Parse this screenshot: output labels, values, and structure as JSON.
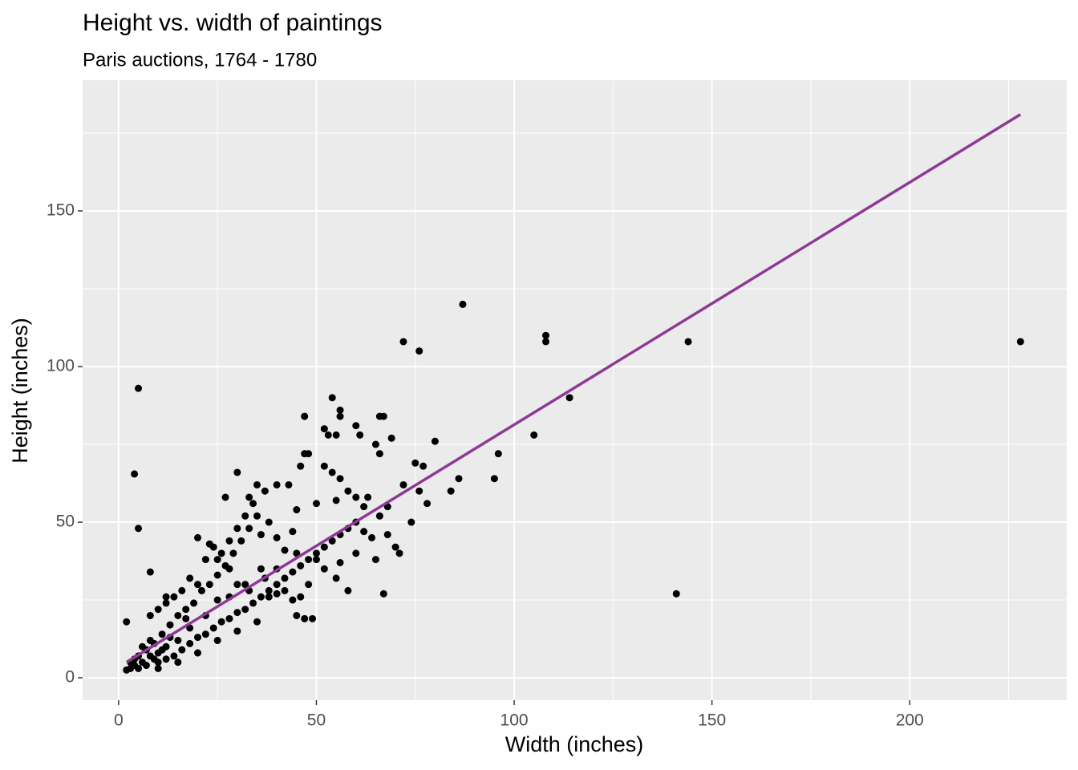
{
  "chart_data": {
    "type": "scatter",
    "title": "Height vs. width of paintings",
    "subtitle": "Paris auctions, 1764 - 1780",
    "x_label": "Width (inches)",
    "y_label": "Height (inches)",
    "x": [
      87,
      72,
      76,
      108,
      108,
      144,
      228,
      141,
      5,
      4,
      5,
      114,
      105,
      96,
      95,
      86,
      84,
      80,
      77,
      75,
      69,
      66,
      67,
      54,
      56,
      56,
      52,
      47,
      53,
      55,
      61,
      60,
      65,
      66,
      67,
      71,
      68,
      63,
      72,
      78,
      76,
      74,
      47,
      48,
      46,
      52,
      54,
      56,
      58,
      43,
      40,
      37,
      35,
      33,
      30,
      27,
      45,
      50,
      55,
      60,
      62,
      20,
      8,
      12,
      40,
      45,
      50,
      55,
      58,
      45,
      47,
      49,
      38,
      30,
      25,
      22,
      18,
      15,
      12,
      10,
      8,
      6,
      4,
      3,
      2,
      2,
      3,
      5,
      7,
      9,
      11,
      13,
      15,
      17,
      19,
      21,
      23,
      25,
      27,
      29,
      31,
      33,
      35,
      10,
      12,
      14,
      16,
      18,
      20,
      22,
      24,
      26,
      28,
      30,
      32,
      34,
      36,
      38,
      40,
      42,
      44,
      46,
      48,
      50,
      52,
      54,
      56,
      58,
      60,
      62,
      64,
      66,
      68,
      70,
      35,
      30,
      25,
      20,
      15,
      10,
      8,
      10,
      12,
      14,
      16,
      18,
      22,
      24,
      26,
      28,
      30,
      32,
      34,
      36,
      38,
      40,
      42,
      44,
      48,
      52,
      56,
      60,
      65,
      23,
      25,
      28,
      32,
      36,
      40,
      44,
      20,
      17,
      13,
      11,
      9,
      7,
      5,
      4,
      6,
      8,
      28,
      33,
      37,
      42,
      46
    ],
    "y": [
      120,
      108,
      105,
      110,
      108,
      108,
      108,
      27,
      93,
      65.5,
      48,
      90,
      78,
      72,
      64,
      64,
      60,
      76,
      68,
      69,
      77,
      84,
      84,
      90,
      86,
      84,
      80,
      84,
      78,
      78,
      78,
      81,
      75,
      72,
      27,
      40,
      46,
      58,
      62,
      56,
      60,
      50,
      72,
      72,
      68,
      68,
      66,
      64,
      60,
      62,
      62,
      60,
      62,
      58,
      66,
      58,
      54,
      56,
      57,
      58,
      55,
      45,
      34,
      26,
      35,
      40,
      38,
      32,
      28,
      20,
      19,
      19,
      26,
      30,
      25,
      20,
      16,
      12,
      10,
      8,
      7,
      5,
      4,
      3,
      2.5,
      18,
      5,
      7,
      9,
      11,
      14,
      17,
      20,
      22,
      24,
      28,
      30,
      33,
      36,
      40,
      44,
      48,
      52,
      5,
      6,
      7,
      9,
      11,
      13,
      14,
      16,
      18,
      19,
      21,
      22,
      24,
      26,
      28,
      30,
      32,
      34,
      36,
      38,
      40,
      42,
      44,
      46,
      48,
      50,
      47,
      45,
      52,
      55,
      42,
      18,
      15,
      12,
      8,
      5,
      3,
      20,
      22,
      24,
      26,
      28,
      32,
      38,
      42,
      40,
      44,
      48,
      52,
      56,
      46,
      50,
      45,
      41,
      47,
      30,
      35,
      37,
      40,
      38,
      43,
      38,
      35,
      30,
      35,
      27,
      25,
      30,
      19,
      13,
      9,
      6,
      4,
      3,
      6,
      10,
      12,
      26,
      28,
      32,
      28,
      26
    ],
    "point_color": "#000000",
    "trend_line": {
      "x": [
        2,
        228
      ],
      "y": [
        5,
        181
      ],
      "color": "#8e3a95"
    },
    "xlim": [
      -9.1,
      239.7
    ],
    "ylim": [
      -7.2,
      192
    ],
    "xticks": [
      0,
      50,
      100,
      150,
      200
    ],
    "yticks": [
      0,
      50,
      100,
      150
    ],
    "x_minor_ticks": [
      25,
      75,
      125,
      175,
      225
    ],
    "y_minor_ticks": [
      25,
      75,
      125,
      175
    ],
    "grid": true,
    "background": "#ebebeb"
  }
}
